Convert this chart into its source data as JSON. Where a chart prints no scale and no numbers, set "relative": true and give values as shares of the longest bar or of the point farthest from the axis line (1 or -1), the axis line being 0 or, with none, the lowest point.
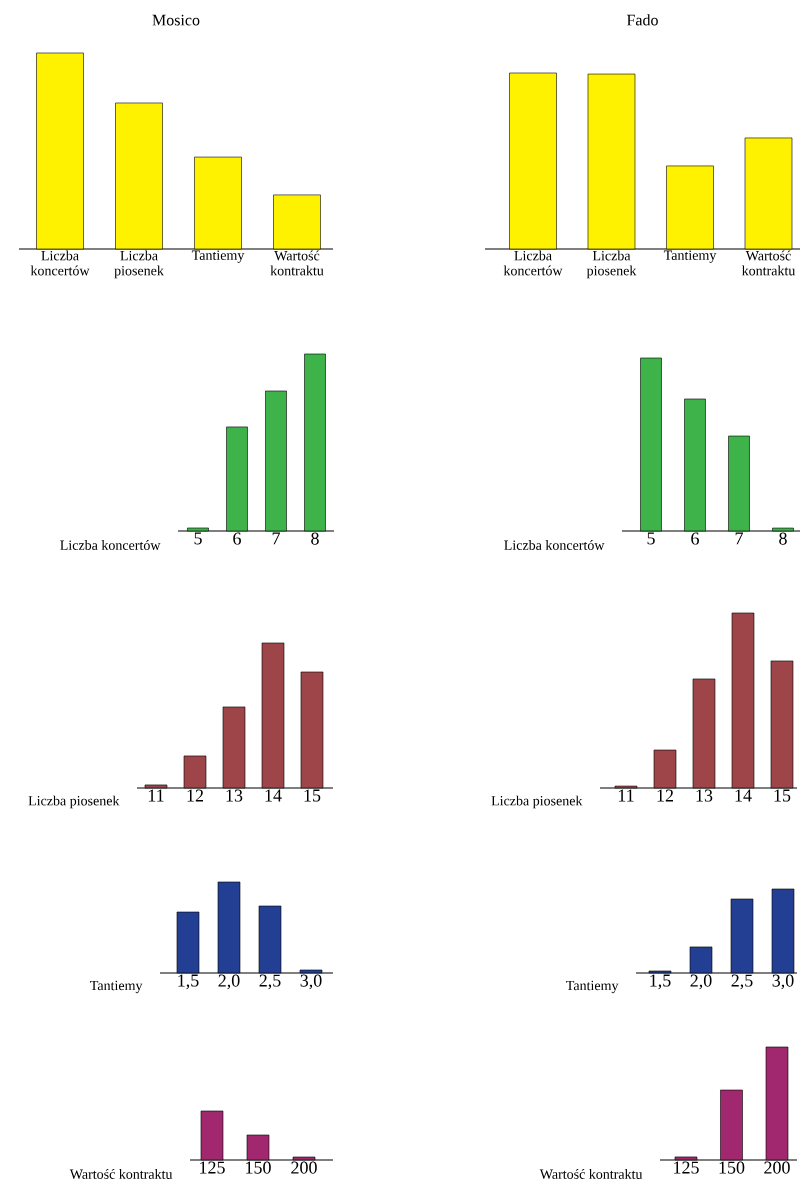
{
  "chart_data": [
    {
      "type": "bar",
      "title": "Mosico",
      "categories": [
        "Liczba koncertów",
        "Liczba piosenek",
        "Tantiemy",
        "Wartość kontraktu"
      ],
      "values": [
        1,
        0.745,
        0.469,
        0.276
      ],
      "color": "#fff200",
      "relative": true
    },
    {
      "type": "bar",
      "title": "Fado",
      "categories": [
        "Liczba koncertów",
        "Liczba piosenek",
        "Tantiemy",
        "Wartość kontraktu"
      ],
      "values": [
        1,
        0.994,
        0.472,
        0.631
      ],
      "color": "#fff200",
      "relative": true
    },
    {
      "type": "bar",
      "xlabel": "Liczba koncertów",
      "categories": [
        "5",
        "6",
        "7",
        "8"
      ],
      "values": [
        0.017,
        0.588,
        0.791,
        1
      ],
      "color": "#3db34a",
      "relative": true
    },
    {
      "type": "bar",
      "xlabel": "Liczba koncertów",
      "categories": [
        "5",
        "6",
        "7",
        "8"
      ],
      "values": [
        1,
        0.763,
        0.549,
        0.017
      ],
      "color": "#3db34a",
      "relative": true
    },
    {
      "type": "bar",
      "xlabel": "Liczba piosenek",
      "categories": [
        "11",
        "12",
        "13",
        "14",
        "15"
      ],
      "values": [
        0.021,
        0.221,
        0.559,
        1,
        0.8
      ],
      "color": "#9e4549",
      "relative": true
    },
    {
      "type": "bar",
      "xlabel": "Liczba piosenek",
      "categories": [
        "11",
        "12",
        "13",
        "14",
        "15"
      ],
      "values": [
        0.011,
        0.217,
        0.623,
        1,
        0.726
      ],
      "color": "#9e4549",
      "relative": true
    },
    {
      "type": "bar",
      "xlabel": "Tantiemy",
      "categories": [
        "1,5",
        "2,0",
        "2,5",
        "3,0"
      ],
      "values": [
        0.67,
        1,
        0.736,
        0.033
      ],
      "color": "#233f93",
      "relative": true
    },
    {
      "type": "bar",
      "xlabel": "Tantiemy",
      "categories": [
        "1,5",
        "2,0",
        "2,5",
        "3,0"
      ],
      "values": [
        0.024,
        0.31,
        0.881,
        1
      ],
      "color": "#233f93",
      "relative": true
    },
    {
      "type": "bar",
      "xlabel": "Wartość kontraktu",
      "categories": [
        "125",
        "150",
        "200"
      ],
      "values": [
        1,
        0.51,
        0.061
      ],
      "color": "#a1286f",
      "relative": true
    },
    {
      "type": "bar",
      "xlabel": "Wartość kontraktu",
      "categories": [
        "125",
        "150",
        "200"
      ],
      "values": [
        0.027,
        0.619,
        1
      ],
      "color": "#a1286f",
      "relative": true
    }
  ]
}
